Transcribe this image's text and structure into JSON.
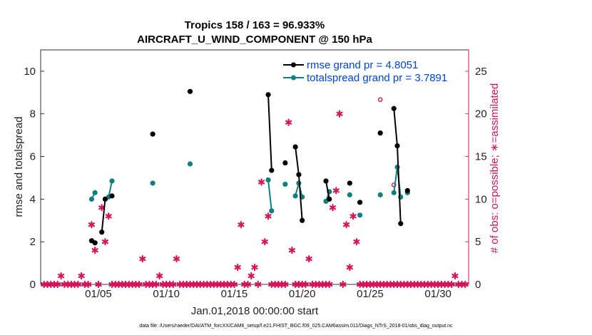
{
  "chart_data": {
    "type": "line",
    "title": "Tropics 158 / 163 = 96.933%",
    "subtitle": "AIRCRAFT_U_WIND_COMPONENT @ 150 hPa",
    "xlabel": "Jan.01,2018 00:00:00 start",
    "ylabel_left": "rmse and totalspread",
    "ylabel_right": "# of obs: o=possible; ∗=assimilated",
    "footnote": "data file: /Users/raeder/DAI/ATM_forcXX/CAM6_setup/f.e21.FHIST_BGC.f09_025.CAM6assim.011/Diags_NTrS_2018-01/obs_diag_output.nc",
    "xlim": [
      0.75,
      32.25
    ],
    "ylim_left": [
      0,
      11
    ],
    "ylim_right": [
      0,
      27.5
    ],
    "x_ticks": [
      5,
      10,
      15,
      20,
      25,
      30
    ],
    "x_tick_labels": [
      "01/05",
      "01/10",
      "01/15",
      "01/20",
      "01/25",
      "01/30"
    ],
    "y_left_ticks": [
      "0",
      "2",
      "4",
      "6",
      "8",
      "10"
    ],
    "y_right_ticks": [
      "0",
      "5",
      "10",
      "15",
      "20",
      "25"
    ],
    "colors": {
      "rmse": "#000000",
      "spread": "#0f8080",
      "obs": "#d6145a",
      "legend_text": "#0044dd"
    },
    "legend": {
      "rmse": "rmse grand pr = 4.8051",
      "spread": "totalspread grand pr = 3.7891"
    },
    "series": [
      {
        "name": "rmse",
        "x": [
          4.5,
          4.75,
          5.25,
          5.5,
          6.0,
          9.0,
          11.75,
          17.5,
          17.75,
          18.75,
          19.5,
          19.75,
          20.0,
          21.75,
          22.0,
          23.5,
          24.25,
          25.75,
          26.75,
          27.0,
          27.25,
          27.75
        ],
        "y": [
          2.05,
          1.95,
          2.45,
          4.0,
          4.15,
          7.05,
          9.05,
          8.9,
          5.35,
          5.7,
          6.45,
          5.15,
          3.0,
          4.85,
          4.0,
          4.75,
          3.85,
          7.1,
          8.25,
          6.5,
          2.85,
          4.4
        ]
      },
      {
        "name": "totalspread",
        "x": [
          4.5,
          4.75,
          5.5,
          5.75,
          6.0,
          9.0,
          11.75,
          17.5,
          17.75,
          18.75,
          19.5,
          19.75,
          20.0,
          21.75,
          22.0,
          23.5,
          24.25,
          25.75,
          26.75,
          27.0,
          27.25,
          27.75
        ],
        "y": [
          4.0,
          4.3,
          4.0,
          4.1,
          4.85,
          4.75,
          5.65,
          4.9,
          3.45,
          4.7,
          4.15,
          4.75,
          4.1,
          3.9,
          4.35,
          4.2,
          3.25,
          4.2,
          4.3,
          5.5,
          4.1,
          4.3
        ]
      }
    ],
    "obs_assimilated": {
      "x": [
        1.0,
        1.25,
        1.5,
        1.75,
        2.0,
        2.25,
        2.5,
        2.75,
        3.0,
        3.25,
        3.5,
        3.75,
        4.0,
        4.25,
        4.5,
        4.75,
        5.0,
        5.25,
        5.5,
        5.75,
        6.0,
        6.25,
        6.5,
        6.75,
        7.0,
        7.25,
        7.5,
        7.75,
        8.0,
        8.25,
        8.5,
        8.75,
        9.0,
        9.25,
        9.5,
        9.75,
        10.0,
        10.25,
        10.5,
        10.75,
        11.0,
        11.25,
        11.5,
        11.75,
        12.0,
        12.25,
        12.5,
        12.75,
        13.0,
        13.25,
        13.5,
        13.75,
        14.0,
        14.25,
        14.5,
        14.75,
        15.0,
        15.25,
        15.5,
        15.75,
        16.0,
        16.25,
        16.5,
        16.75,
        17.0,
        17.25,
        17.5,
        17.75,
        18.0,
        18.25,
        18.5,
        18.75,
        19.0,
        19.25,
        19.5,
        19.75,
        20.0,
        20.25,
        20.5,
        20.75,
        21.0,
        21.25,
        21.5,
        21.75,
        22.0,
        22.25,
        22.5,
        22.75,
        23.0,
        23.25,
        23.5,
        23.75,
        24.0,
        24.25,
        24.5,
        24.75,
        25.0,
        25.25,
        25.5,
        25.75,
        26.0,
        26.25,
        26.5,
        26.75,
        27.0,
        27.25,
        27.5,
        27.75,
        28.0,
        28.25,
        28.5,
        28.75,
        29.0,
        29.25,
        29.5,
        29.75,
        30.0,
        30.25,
        30.5,
        30.75,
        31.0,
        31.25,
        31.5,
        31.75,
        32.0
      ],
      "y": [
        0,
        0,
        0,
        0,
        0,
        1,
        0,
        0,
        0,
        0,
        0,
        1,
        0,
        0,
        7,
        4,
        0,
        9,
        5,
        8,
        0,
        0,
        0,
        0,
        0,
        0,
        0,
        0,
        0,
        3,
        0,
        0,
        0,
        0,
        1,
        0,
        0,
        0,
        0,
        3,
        0,
        0,
        0,
        0,
        0,
        0,
        0,
        0,
        0,
        0,
        0,
        0,
        0,
        0,
        0,
        0,
        0,
        2,
        7,
        0,
        0,
        1,
        2,
        0,
        12,
        5,
        8,
        0,
        0,
        0,
        0,
        0,
        19,
        4,
        0,
        0,
        0,
        0,
        3,
        0,
        0,
        0,
        0,
        0,
        0,
        9,
        11,
        20,
        0,
        7,
        2,
        8,
        5,
        0,
        0,
        0,
        0,
        0,
        0,
        0,
        0,
        0,
        0,
        0,
        0,
        0,
        0,
        0,
        0,
        0,
        0,
        0,
        0,
        0,
        0,
        0,
        0,
        0,
        0,
        0,
        0,
        1,
        0,
        0,
        0
      ],
      "possible_marked_x": [
        25.75,
        26.75
      ],
      "possible_marked_y": [
        21,
        11
      ]
    }
  }
}
